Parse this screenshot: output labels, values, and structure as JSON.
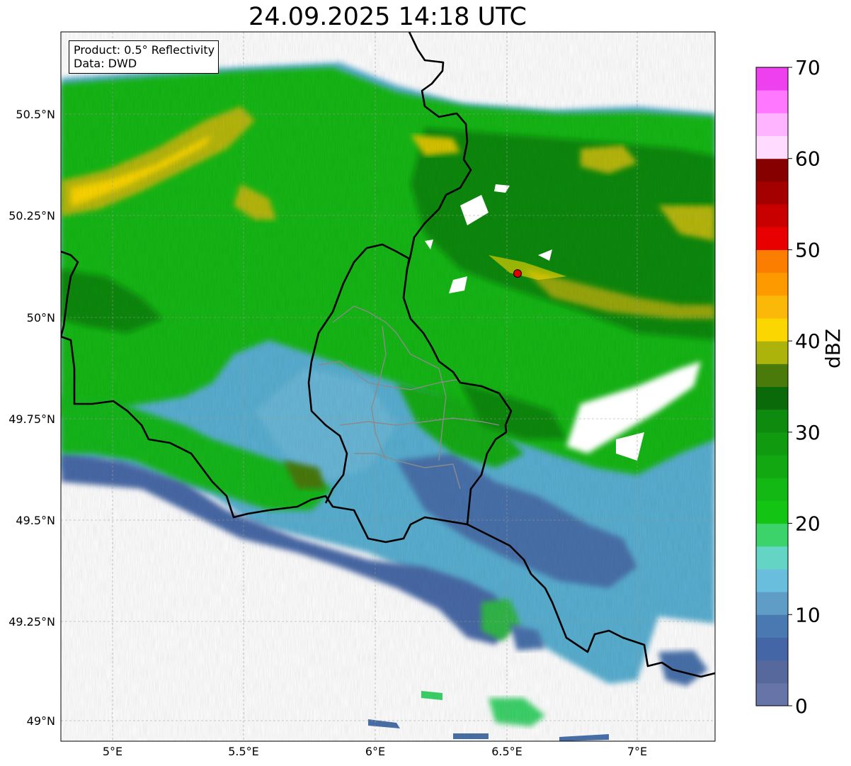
{
  "title": "24.09.2025 14:18 UTC",
  "info": {
    "product": "Product: 0.5° Reflectivity",
    "source": "Data: DWD"
  },
  "axes": {
    "lon_ticks": [
      "5°E",
      "5.5°E",
      "6°E",
      "6.5°E",
      "7°E"
    ],
    "lat_ticks": [
      "50.5°N",
      "50.25°N",
      "50°N",
      "49.75°N",
      "49.5°N",
      "49.25°N",
      "49°N"
    ],
    "lon_range": [
      4.8,
      7.3
    ],
    "lat_range": [
      48.95,
      50.7
    ]
  },
  "colorbar": {
    "label": "dBZ",
    "ticks": [
      "0",
      "10",
      "20",
      "30",
      "40",
      "50",
      "60",
      "70"
    ],
    "range": [
      0,
      70
    ],
    "colors": [
      "#6674a8",
      "#56689c",
      "#4566a6",
      "#4a78b0",
      "#5f9cc6",
      "#68bedc",
      "#64d4c4",
      "#3cd46a",
      "#14c414",
      "#14b814",
      "#12a812",
      "#109a10",
      "#0e8a0e",
      "#0a6a0a",
      "#4a7a0a",
      "#acb40c",
      "#fcd600",
      "#fcb808",
      "#fc9a00",
      "#fc7e00",
      "#e80000",
      "#c80000",
      "#a40000",
      "#860000",
      "#ffdcff",
      "#ffb4ff",
      "#ff78ff",
      "#ee40ee"
    ]
  },
  "radar_site": {
    "name": "radar-site",
    "lon": 6.55,
    "lat": 50.11,
    "color": "#e00000"
  }
}
